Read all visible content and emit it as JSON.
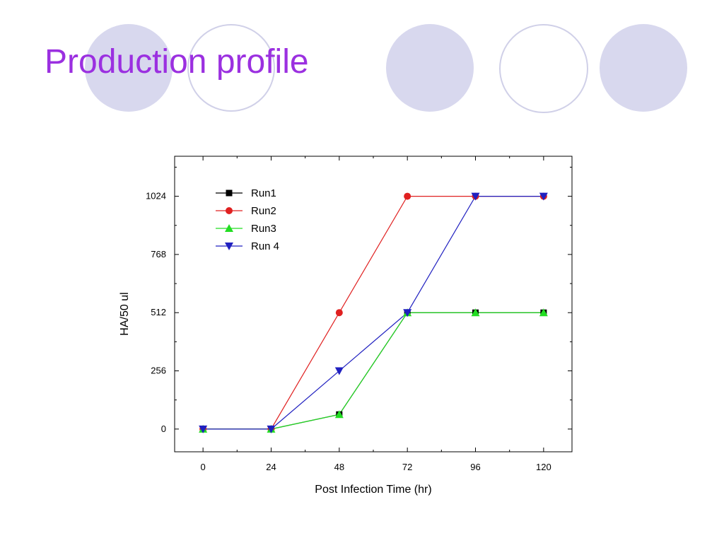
{
  "slide": {
    "title": "Production profile",
    "colors": {
      "title": "#9b30e0",
      "circle_fill": "#d8d8ee",
      "circle_stroke": "#d0d0e8"
    }
  },
  "chart_data": {
    "type": "line",
    "xlabel": "Post Infection Time (hr)",
    "ylabel": "HA/50 ul",
    "x_ticks": [
      0,
      24,
      48,
      72,
      96,
      120
    ],
    "y_ticks": [
      0,
      256,
      512,
      768,
      1024
    ],
    "xlim": [
      -10,
      130
    ],
    "ylim": [
      -100,
      1200
    ],
    "grid": false,
    "legend_position": "top-left",
    "series": [
      {
        "name": "Run1",
        "color": "#000000",
        "marker": "square",
        "x": [
          0,
          24,
          48,
          72,
          96,
          120
        ],
        "y": [
          0,
          0,
          64,
          512,
          512,
          512
        ]
      },
      {
        "name": "Run2",
        "color": "#e02020",
        "marker": "circle",
        "x": [
          0,
          24,
          48,
          72,
          96,
          120
        ],
        "y": [
          0,
          0,
          512,
          1024,
          1024,
          1024
        ]
      },
      {
        "name": "Run3",
        "color": "#22dd22",
        "marker": "triangle-up",
        "x": [
          0,
          24,
          48,
          72,
          96,
          120
        ],
        "y": [
          0,
          0,
          64,
          512,
          512,
          512
        ]
      },
      {
        "name": "Run 4",
        "color": "#2020c0",
        "marker": "triangle-down",
        "x": [
          0,
          24,
          48,
          72,
          96,
          120
        ],
        "y": [
          0,
          0,
          256,
          512,
          1024,
          1024
        ]
      }
    ]
  }
}
